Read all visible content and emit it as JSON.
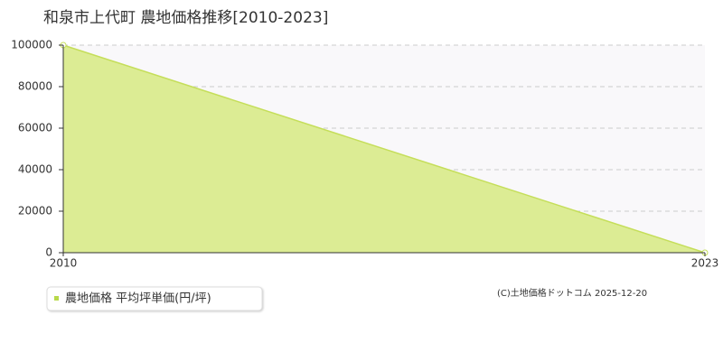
{
  "chart_data": {
    "type": "area",
    "title": "和泉市上代町 農地価格推移[2010-2023]",
    "x": [
      2010,
      2023
    ],
    "series": [
      {
        "name": "農地価格 平均坪単価(円/坪)",
        "color": "#dcec94",
        "values": [
          100000,
          0
        ]
      }
    ],
    "xlim": [
      2010,
      2023
    ],
    "xticks": [
      2010,
      2023
    ],
    "ylim": [
      0,
      100000
    ],
    "yticks": [
      0,
      20000,
      40000,
      60000,
      80000,
      100000
    ],
    "grid": true,
    "credit": "(C)土地価格ドットコム 2025-12-20"
  }
}
